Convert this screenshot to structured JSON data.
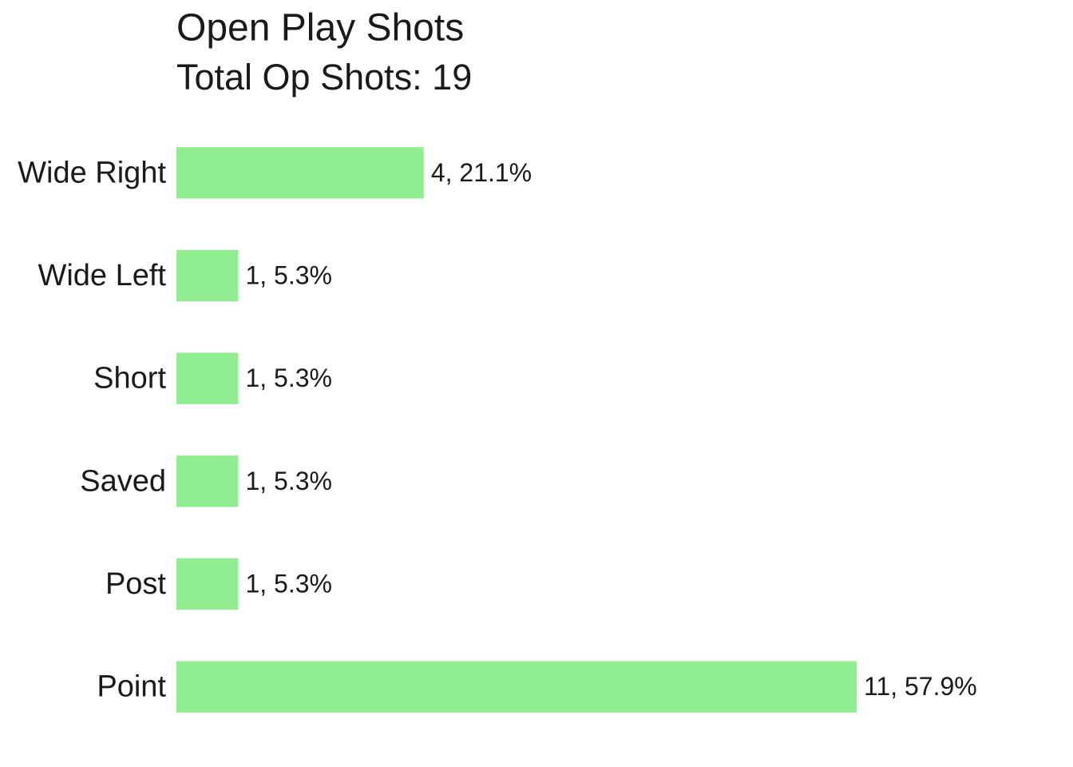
{
  "chart_data": {
    "type": "bar",
    "orientation": "horizontal",
    "title": "Open Play Shots",
    "subtitle": "Total Op Shots: 19",
    "categories": [
      "Wide Right",
      "Wide Left",
      "Short",
      "Saved",
      "Post",
      "Point"
    ],
    "values": [
      4,
      1,
      1,
      1,
      1,
      11
    ],
    "value_labels": [
      "4, 21.1%",
      "1, 5.3%",
      "1, 5.3%",
      "1, 5.3%",
      "1, 5.3%",
      "11, 57.9%"
    ],
    "color": "#90ee90",
    "xlim": [
      0,
      11
    ],
    "grid": false
  }
}
